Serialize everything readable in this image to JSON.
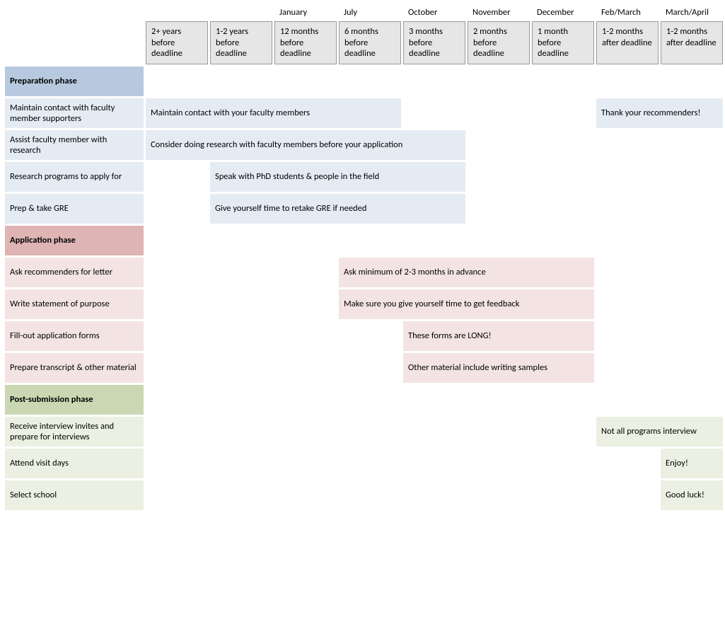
{
  "columns": {
    "months": [
      "",
      "",
      "",
      "January",
      "July",
      "October",
      "November",
      "December",
      "Feb/March",
      "March/April"
    ],
    "timing": [
      "",
      "2+ years before deadline",
      "1-2 years before deadline",
      "12 months before deadline",
      "6 months before deadline",
      "3 months  before deadline",
      "2 months  before deadline",
      "1 month before deadline",
      "1-2 months after deadline",
      "1-2 months after deadline"
    ]
  },
  "sections": {
    "prep": {
      "title": "Preparation phase"
    },
    "app": {
      "title": "Application phase"
    },
    "post": {
      "title": "Post-submission phase"
    }
  },
  "rows": {
    "r1": {
      "label": "Maintain contact with faculty member supporters",
      "fillA": "Maintain contact with your faculty members",
      "fillB": "Thank your recommenders!"
    },
    "r2": {
      "label": "Assist faculty member with research",
      "fillA": "Consider doing research with faculty members before your application"
    },
    "r3": {
      "label": "Research programs to apply for",
      "fillA": "Speak with PhD students & people in the field"
    },
    "r4": {
      "label": "Prep & take GRE",
      "fillA": "Give yourself time to retake GRE if needed"
    },
    "r5": {
      "label": "Ask recommenders for letter",
      "fillA": "Ask minimum of 2-3 months in advance"
    },
    "r6": {
      "label": "Write statement of purpose",
      "fillA": "Make sure you give yourself time to get feedback"
    },
    "r7": {
      "label": "Fill-out application forms",
      "fillA": "These forms are LONG!"
    },
    "r8": {
      "label": "Prepare transcript & other material",
      "fillA": "Other material include writing samples"
    },
    "r9": {
      "label": "Receive interview invites and prepare for interviews",
      "fillA": "Not all programs interview"
    },
    "r10": {
      "label": "Attend visit days",
      "fillA": "Enjoy!"
    },
    "r11": {
      "label": "Select school",
      "fillA": "Good luck!"
    }
  },
  "colors": {
    "hdr_bg": "#e6e6e6",
    "prep_section": "#b7c9de",
    "app_section": "#deb4b4",
    "post_section": "#c9d8b3",
    "prep_fill": "#e4ebf3",
    "app_fill": "#f3e3e3",
    "post_fill": "#ebf0e2"
  }
}
